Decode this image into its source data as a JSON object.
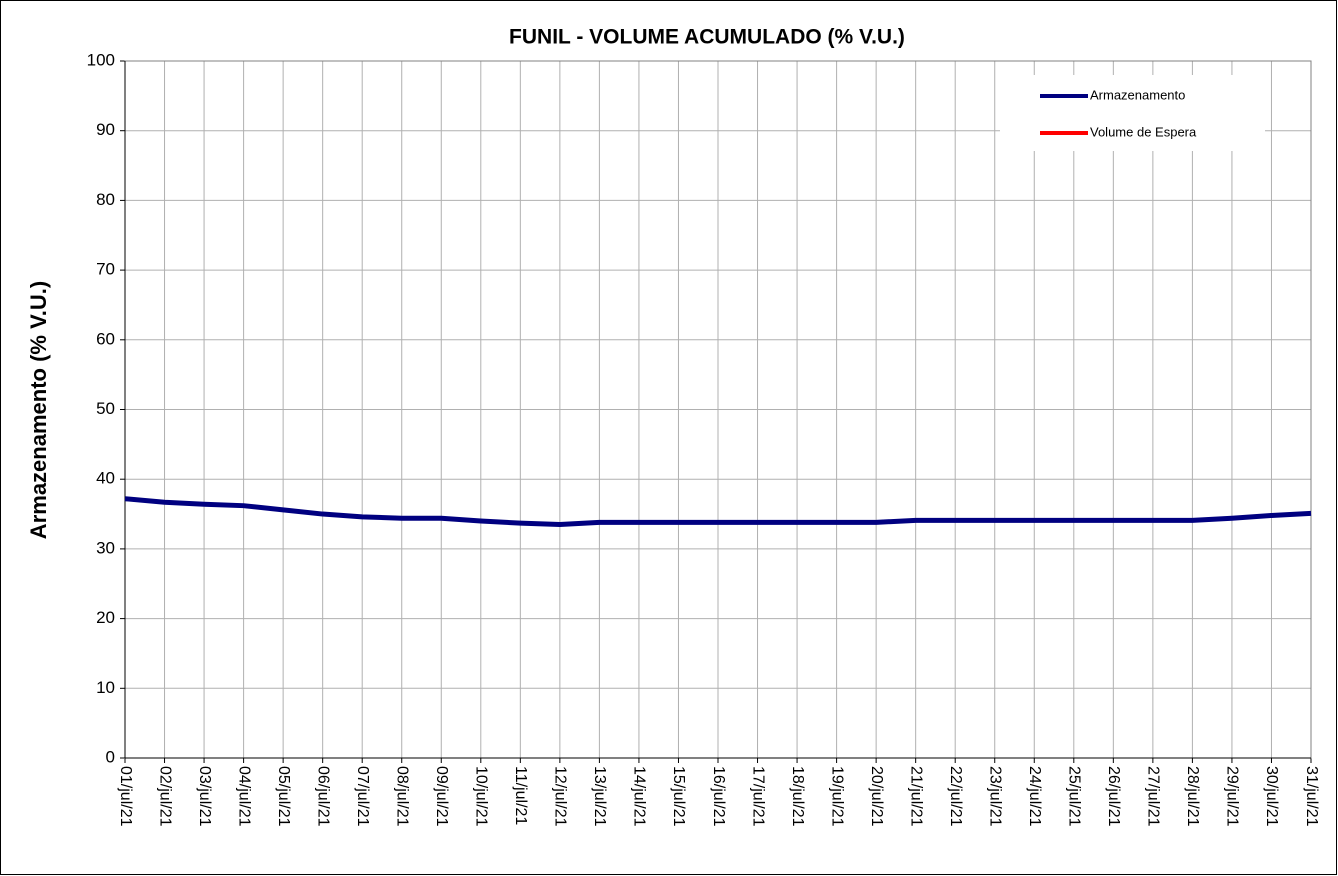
{
  "chart_data": {
    "type": "line",
    "title": "FUNIL - VOLUME ACUMULADO (% V.U.)",
    "ylabel": "Armazenamento (% V.U.)",
    "categories": [
      "01/jul/21",
      "02/jul/21",
      "03/jul/21",
      "04/jul/21",
      "05/jul/21",
      "06/jul/21",
      "07/jul/21",
      "08/jul/21",
      "09/jul/21",
      "10/jul/21",
      "11/jul/21",
      "12/jul/21",
      "13/jul/21",
      "14/jul/21",
      "15/jul/21",
      "16/jul/21",
      "17/jul/21",
      "18/jul/21",
      "19/jul/21",
      "20/jul/21",
      "21/jul/21",
      "22/jul/21",
      "23/jul/21",
      "24/jul/21",
      "25/jul/21",
      "26/jul/21",
      "27/jul/21",
      "28/jul/21",
      "29/jul/21",
      "30/jul/21",
      "31/jul/21"
    ],
    "series": [
      {
        "name": "Armazenamento",
        "color": "#000080",
        "values": [
          37.2,
          36.7,
          36.4,
          36.2,
          35.6,
          35.0,
          34.6,
          34.4,
          34.4,
          34.0,
          33.7,
          33.5,
          33.8,
          33.8,
          33.8,
          33.8,
          33.8,
          33.8,
          33.8,
          33.8,
          34.1,
          34.1,
          34.1,
          34.1,
          34.1,
          34.1,
          34.1,
          34.1,
          34.4,
          34.8,
          35.1
        ]
      },
      {
        "name": "Volume de Espera",
        "color": "#ff0000",
        "values": [
          null,
          null,
          null,
          null,
          null,
          null,
          null,
          null,
          null,
          null,
          null,
          null,
          null,
          null,
          null,
          null,
          null,
          null,
          null,
          null,
          null,
          null,
          null,
          null,
          null,
          null,
          null,
          null,
          null,
          null,
          null
        ]
      }
    ],
    "ylim": [
      0,
      100
    ],
    "yticks": [
      0,
      10,
      20,
      30,
      40,
      50,
      60,
      70,
      80,
      90,
      100
    ],
    "grid": true,
    "legend": "upper right"
  }
}
